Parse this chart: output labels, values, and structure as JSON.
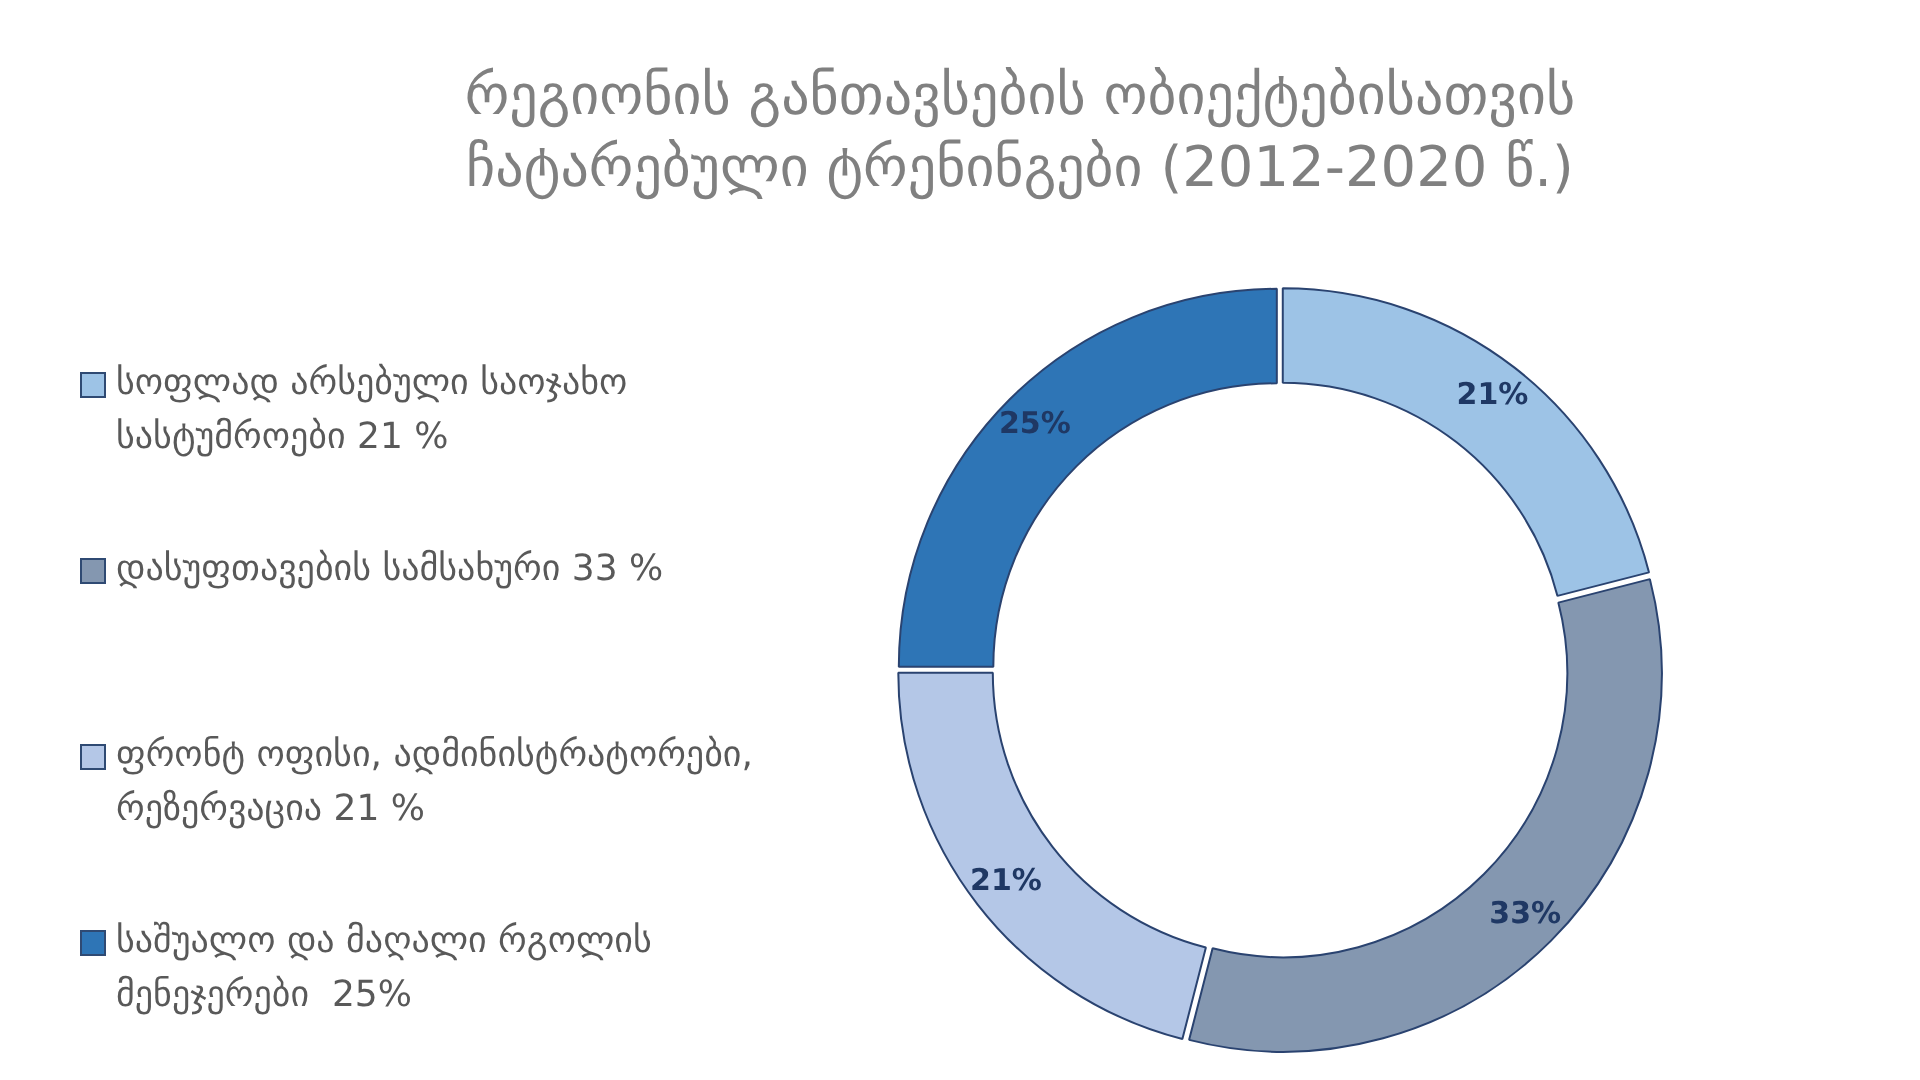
{
  "chart_data": {
    "type": "donut",
    "title": "რეგიონის განთავსების ობიექტებისათვის ჩატარებული ტრენინგები (2012-2020 წ.)",
    "categories": [
      "სოფლად არსებული საოჯახო სასტუმროები 21 %",
      "დასუფთავების სამსახური 33 %",
      "ფრონტ ოფისი, ადმინისტრატორები, რეზერვაცია 21 %",
      "საშუალო და მაღალი რგოლის მენეჯერები  25%"
    ],
    "values": [
      21,
      33,
      21,
      25
    ],
    "colors": [
      "#9dc3e6",
      "#8497b0",
      "#b4c7e7",
      "#2e75b6"
    ],
    "value_labels": [
      "21%",
      "33%",
      "21%",
      "25%"
    ],
    "legend": "left"
  }
}
